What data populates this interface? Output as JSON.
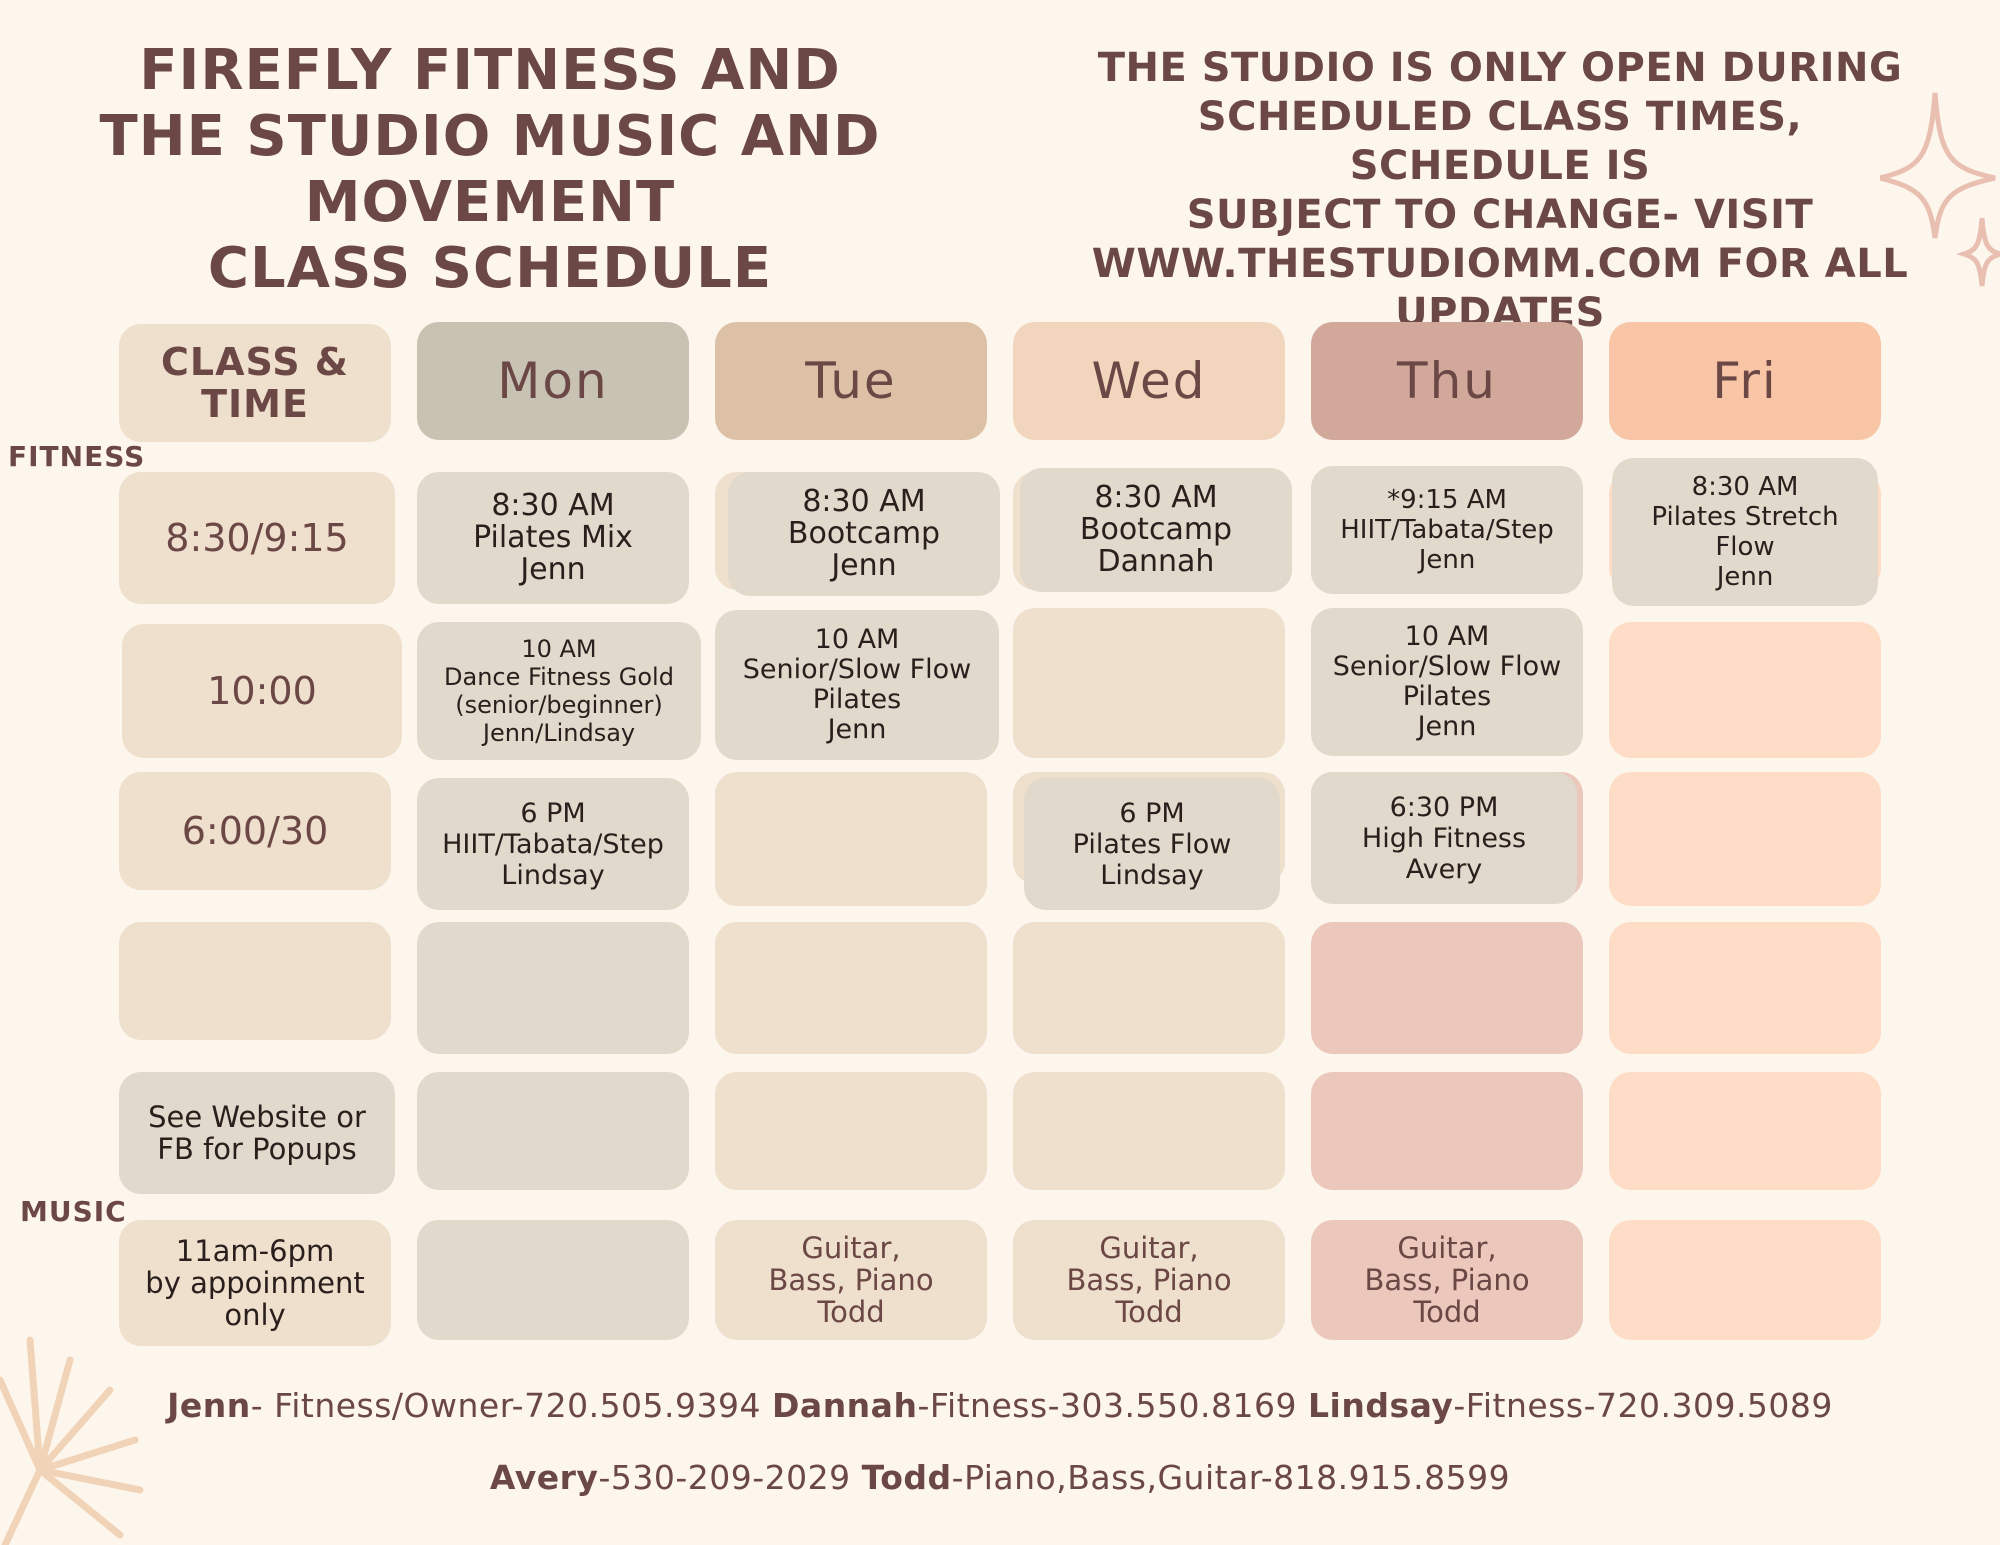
{
  "header": {
    "title_lines": [
      "Firefly Fitness and",
      "The Studio Music and Movement",
      "Class Schedule"
    ],
    "notice_lines": [
      "The studio is only open during",
      "scheduled class times, schedule is",
      "subject to change- visit",
      "www.thestudiomm.com for all updates"
    ]
  },
  "sections": {
    "fitness": "FITNESS",
    "music": "MUSIC"
  },
  "columns": {
    "label": [
      "CLASS &",
      "TIME"
    ],
    "days": [
      "Mon",
      "Tue",
      "Wed",
      "Thu",
      "Fri"
    ]
  },
  "times": [
    "8:30/9:15",
    "10:00",
    "6:00/30"
  ],
  "popups": [
    "See Website or",
    "FB for Popups"
  ],
  "music_hours": [
    "11am-6pm",
    "by appoinment",
    "only"
  ],
  "classes": {
    "mon_830": [
      "8:30 AM",
      "Pilates Mix",
      "Jenn"
    ],
    "tue_830": [
      "8:30 AM",
      "Bootcamp",
      "Jenn"
    ],
    "wed_830": [
      "8:30 AM",
      "Bootcamp",
      "Dannah"
    ],
    "thu_915": [
      "*9:15 AM",
      "HIIT/Tabata/Step",
      "Jenn"
    ],
    "fri_830": [
      "8:30 AM",
      "Pilates Stretch",
      "Flow",
      "Jenn"
    ],
    "mon_10": [
      "10 AM",
      "Dance Fitness Gold",
      "(senior/beginner)",
      "Jenn/Lindsay"
    ],
    "tue_10": [
      "10 AM",
      "Senior/Slow Flow",
      "Pilates",
      "Jenn"
    ],
    "thu_10": [
      "10 AM",
      "Senior/Slow Flow",
      "Pilates",
      "Jenn"
    ],
    "mon_6": [
      "6 PM",
      "HIIT/Tabata/Step",
      "Lindsay"
    ],
    "wed_6": [
      "6 PM",
      "Pilates Flow",
      "Lindsay"
    ],
    "thu_630": [
      "6:30 PM",
      "High Fitness",
      "Avery"
    ]
  },
  "music_lessons": {
    "tue": [
      "Guitar,",
      "Bass, Piano",
      "Todd"
    ],
    "wed": [
      "Guitar,",
      "Bass, Piano",
      "Todd"
    ],
    "thu": [
      "Guitar,",
      "Bass, Piano",
      "Todd"
    ]
  },
  "contacts": {
    "line1": [
      {
        "name": "Jenn",
        "info": "- Fitness/Owner-720.505.9394"
      },
      {
        "name": "Dannah",
        "info": "-Fitness-303.550.8169"
      },
      {
        "name": "Lindsay",
        "info": "-Fitness-720.309.5089"
      }
    ],
    "line2": [
      {
        "name": "Avery",
        "info": "-530-209-2029"
      },
      {
        "name": "Todd",
        "info": "-Piano,Bass,Guitar-818.915.8599"
      }
    ]
  },
  "colors": {
    "heading": "#6b4745",
    "background": "#fdf6ec",
    "mon": "#c8c2b2",
    "tue": "#dcc1a6",
    "wed": "#f2d5bd",
    "thu": "#d2a89b",
    "fri": "#f8c6a6"
  }
}
